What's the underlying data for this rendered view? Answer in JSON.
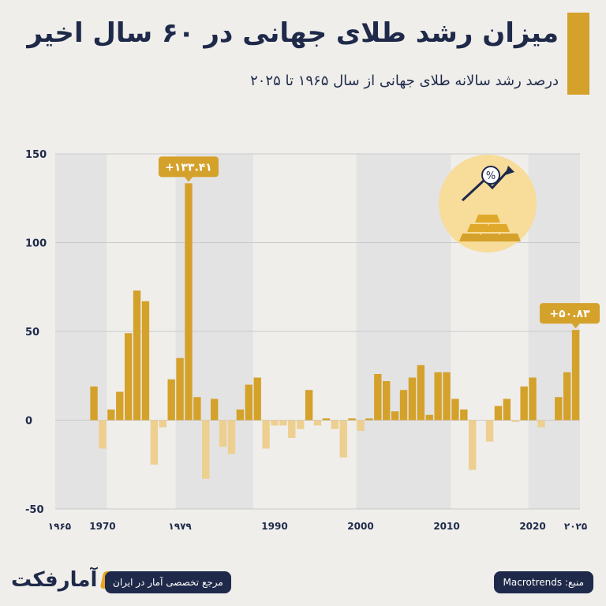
{
  "header": {
    "title": "میزان رشد طلای جهانی در ۶۰ سال اخیر",
    "subtitle": "درصد رشد سالانه طلای جهانی از سال ۱۹۶۵ تا ۲۰۲۵"
  },
  "footer": {
    "brand": "آمارفکت",
    "tagline": "مرجع تخصصی آمار در ایران",
    "source": "منبع: Macrotrends"
  },
  "colors": {
    "positive": "#d4a12a",
    "negative": "#edcf8f",
    "band": "#e3e3e4",
    "text": "#1f2a4a",
    "accent": "#d4a12a"
  },
  "chart_data": {
    "type": "bar",
    "ylim": [
      -50,
      150
    ],
    "yticks": [
      150,
      100,
      50,
      0,
      -50
    ],
    "ytick_labels": [
      "150",
      "100",
      "50",
      "0",
      "-50"
    ],
    "xticks": [
      {
        "year": 1965,
        "label": "۱۹۶۵"
      },
      {
        "year": 1970,
        "label": "1970"
      },
      {
        "year": 1979,
        "label": "۱۹۷۹"
      },
      {
        "year": 1990,
        "label": "1990"
      },
      {
        "year": 2000,
        "label": "2000"
      },
      {
        "year": 2010,
        "label": "2010"
      },
      {
        "year": 2020,
        "label": "2020"
      },
      {
        "year": 2025,
        "label": "۲۰۲۵"
      }
    ],
    "x": [
      1965,
      1966,
      1967,
      1968,
      1969,
      1970,
      1971,
      1972,
      1973,
      1974,
      1975,
      1976,
      1977,
      1978,
      1979,
      1980,
      1981,
      1982,
      1983,
      1984,
      1985,
      1986,
      1987,
      1988,
      1989,
      1990,
      1991,
      1992,
      1993,
      1994,
      1995,
      1996,
      1997,
      1998,
      1999,
      2000,
      2001,
      2002,
      2003,
      2004,
      2005,
      2006,
      2007,
      2008,
      2009,
      2010,
      2011,
      2012,
      2013,
      2014,
      2015,
      2016,
      2017,
      2018,
      2019,
      2020,
      2021,
      2022,
      2023,
      2024,
      2025
    ],
    "values": [
      0,
      0,
      0,
      0,
      19,
      -16,
      6,
      16,
      49,
      73,
      67,
      -25,
      -4,
      23,
      35,
      133.41,
      13,
      -33,
      12,
      -15,
      -19,
      6,
      20,
      24,
      -16,
      -3,
      -3,
      -10,
      -5,
      17,
      -3,
      1,
      -5,
      -21,
      1,
      -6,
      1,
      26,
      22,
      5,
      17,
      24,
      31,
      3,
      27,
      27,
      12,
      6,
      -28,
      0,
      -12,
      8,
      12,
      -1,
      19,
      24,
      -4,
      0,
      13,
      27,
      50.83
    ],
    "annotations": [
      {
        "year": 1980,
        "value": 133.41,
        "label": "+۱۳۳.۴۱"
      },
      {
        "year": 2025,
        "value": 50.83,
        "label": "+۵۰.۸۳"
      }
    ],
    "shaded_ranges": [
      [
        1965,
        1970
      ],
      [
        1979,
        1987
      ],
      [
        2000,
        2010
      ],
      [
        2020,
        2025
      ]
    ]
  }
}
